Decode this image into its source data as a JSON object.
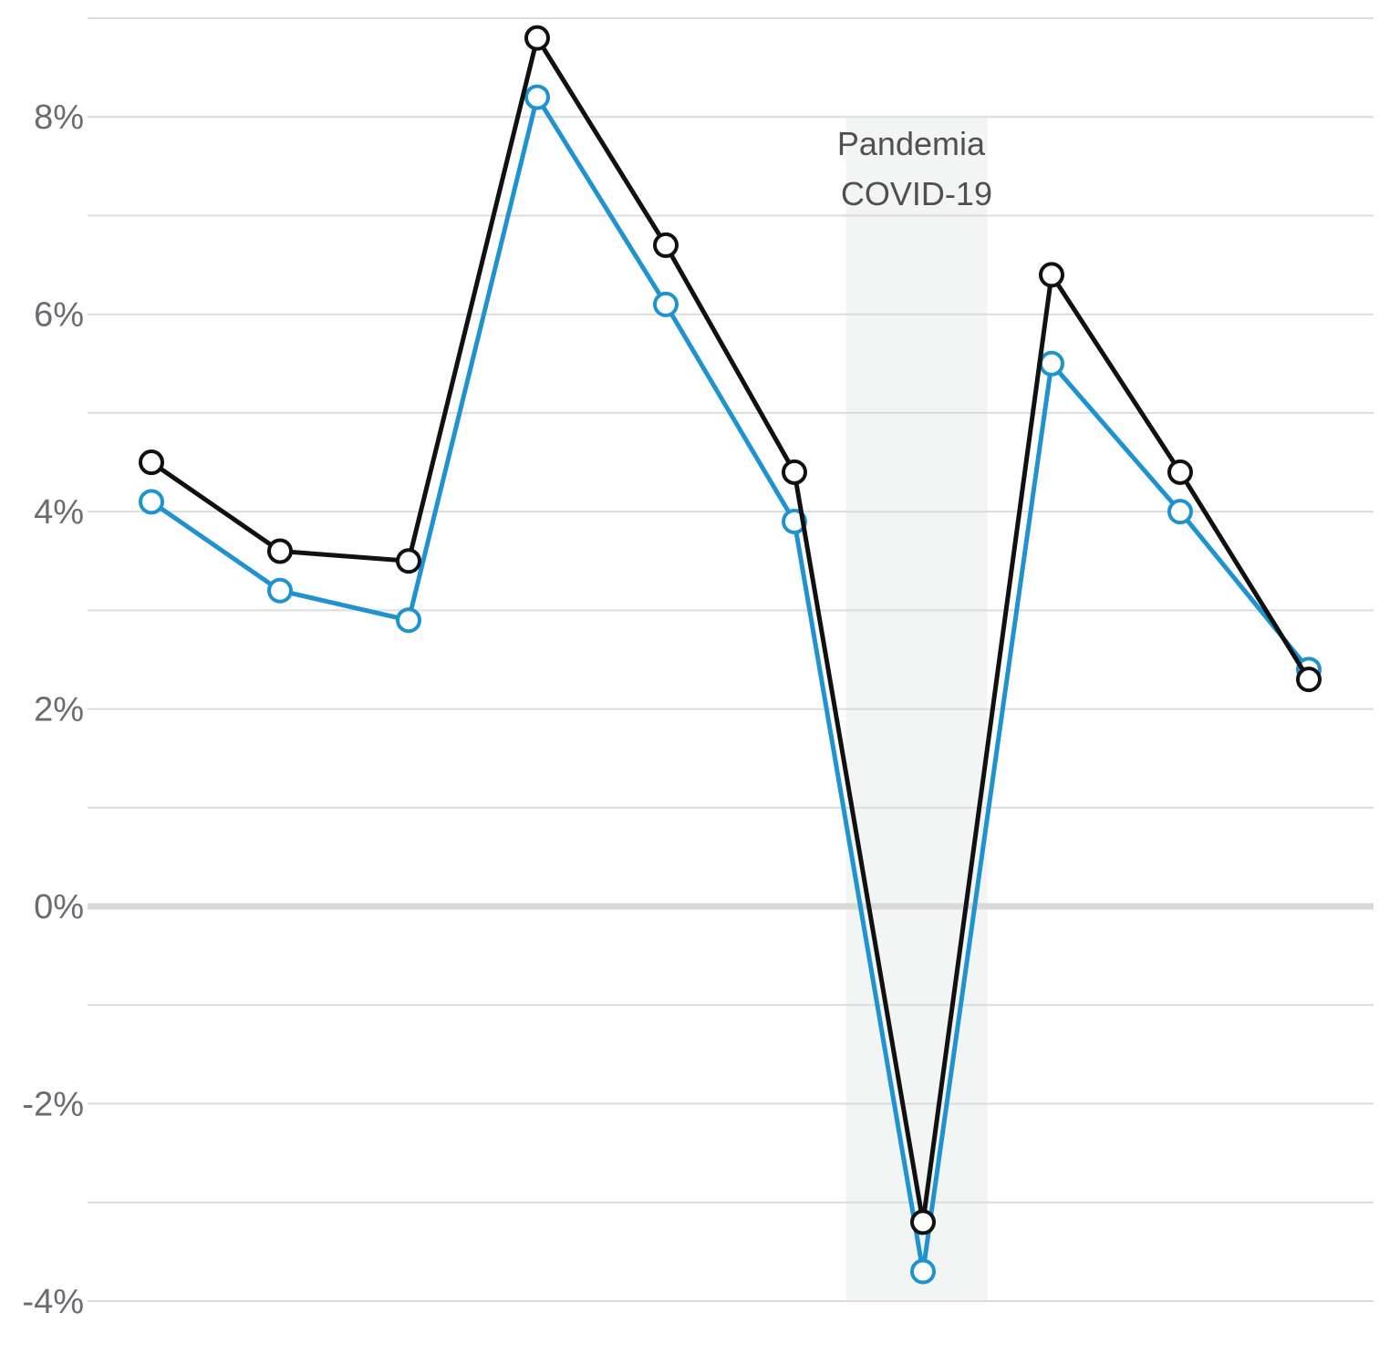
{
  "chart_data": {
    "type": "line",
    "title": "",
    "xlabel": "",
    "ylabel": "",
    "ylim": [
      -4,
      9
    ],
    "y_ticks": [
      {
        "value": 8,
        "label": "8%"
      },
      {
        "value": 6,
        "label": "6%"
      },
      {
        "value": 4,
        "label": "4%"
      },
      {
        "value": 2,
        "label": "2%"
      },
      {
        "value": 0,
        "label": "0%"
      },
      {
        "value": -2,
        "label": "-2%"
      },
      {
        "value": -4,
        "label": "-4%"
      }
    ],
    "gridlines": [
      9,
      8,
      7,
      6,
      5,
      4,
      3,
      2,
      1,
      0,
      -1,
      -2,
      -3,
      -4
    ],
    "grid": true,
    "x": [
      1,
      2,
      3,
      4,
      5,
      6,
      7,
      8,
      9,
      10
    ],
    "series": [
      {
        "color": "#1f93cf",
        "values": [
          4.1,
          3.2,
          2.9,
          8.2,
          6.1,
          3.9,
          -3.7,
          5.5,
          4.0,
          2.4
        ]
      },
      {
        "color": "#111111",
        "values": [
          4.5,
          3.6,
          3.5,
          8.8,
          6.7,
          4.4,
          -3.2,
          6.4,
          4.4,
          2.3
        ]
      }
    ],
    "annotations": [
      {
        "text_line1": "Pandemia",
        "text_line2": "COVID-19",
        "x_start": 6.4,
        "x_end": 7.5
      }
    ],
    "colors": {
      "grid": "#dcdcdc",
      "zero_line": "#d9d9d9",
      "shade": "#f3f5f4"
    }
  }
}
